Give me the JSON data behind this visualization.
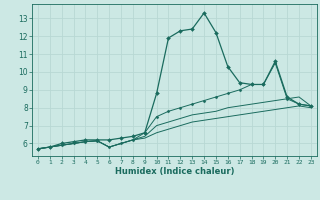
{
  "xlabel": "Humidex (Indice chaleur)",
  "bg_color": "#cce8e4",
  "grid_color": "#b8d8d4",
  "line_color": "#1a6b5e",
  "xlim": [
    -0.5,
    23.5
  ],
  "ylim": [
    5.3,
    13.8
  ],
  "xticks": [
    0,
    1,
    2,
    3,
    4,
    5,
    6,
    7,
    8,
    9,
    10,
    11,
    12,
    13,
    14,
    15,
    16,
    17,
    18,
    19,
    20,
    21,
    22,
    23
  ],
  "yticks": [
    6,
    7,
    8,
    9,
    10,
    11,
    12,
    13
  ],
  "lines": [
    {
      "x": [
        0,
        1,
        2,
        3,
        4,
        5,
        6,
        7,
        8,
        9,
        10,
        11,
        12,
        13,
        14,
        15,
        16,
        17,
        18,
        19,
        20,
        21,
        22,
        23
      ],
      "y": [
        5.7,
        5.8,
        6.0,
        6.1,
        6.2,
        6.2,
        6.2,
        6.3,
        6.4,
        6.6,
        8.8,
        11.9,
        12.3,
        12.4,
        13.3,
        12.2,
        10.3,
        9.4,
        9.3,
        9.3,
        10.6,
        8.6,
        8.2,
        8.1
      ],
      "marker": "D",
      "markersize": 2.0,
      "linewidth": 0.9
    },
    {
      "x": [
        0,
        1,
        2,
        3,
        4,
        5,
        6,
        7,
        8,
        9,
        10,
        11,
        12,
        13,
        14,
        15,
        16,
        17,
        18,
        19,
        20,
        21,
        22,
        23
      ],
      "y": [
        5.7,
        5.8,
        5.9,
        6.0,
        6.1,
        6.15,
        5.8,
        6.0,
        6.2,
        6.6,
        7.5,
        7.8,
        8.0,
        8.2,
        8.4,
        8.6,
        8.8,
        9.0,
        9.3,
        9.3,
        10.5,
        8.5,
        8.2,
        8.1
      ],
      "marker": "D",
      "markersize": 1.5,
      "linewidth": 0.7
    },
    {
      "x": [
        0,
        1,
        2,
        3,
        4,
        5,
        6,
        7,
        8,
        9,
        10,
        11,
        12,
        13,
        14,
        15,
        16,
        17,
        18,
        19,
        20,
        21,
        22,
        23
      ],
      "y": [
        5.7,
        5.8,
        5.9,
        6.0,
        6.1,
        6.15,
        5.8,
        6.0,
        6.2,
        6.4,
        7.0,
        7.2,
        7.4,
        7.6,
        7.7,
        7.8,
        8.0,
        8.1,
        8.2,
        8.3,
        8.4,
        8.5,
        8.6,
        8.1
      ],
      "marker": null,
      "markersize": 0,
      "linewidth": 0.7
    },
    {
      "x": [
        0,
        1,
        2,
        3,
        4,
        5,
        6,
        7,
        8,
        9,
        10,
        11,
        12,
        13,
        14,
        15,
        16,
        17,
        18,
        19,
        20,
        21,
        22,
        23
      ],
      "y": [
        5.7,
        5.8,
        5.9,
        6.0,
        6.1,
        6.15,
        5.8,
        6.0,
        6.2,
        6.3,
        6.6,
        6.8,
        7.0,
        7.2,
        7.3,
        7.4,
        7.5,
        7.6,
        7.7,
        7.8,
        7.9,
        8.0,
        8.1,
        8.0
      ],
      "marker": null,
      "markersize": 0,
      "linewidth": 0.7
    }
  ]
}
